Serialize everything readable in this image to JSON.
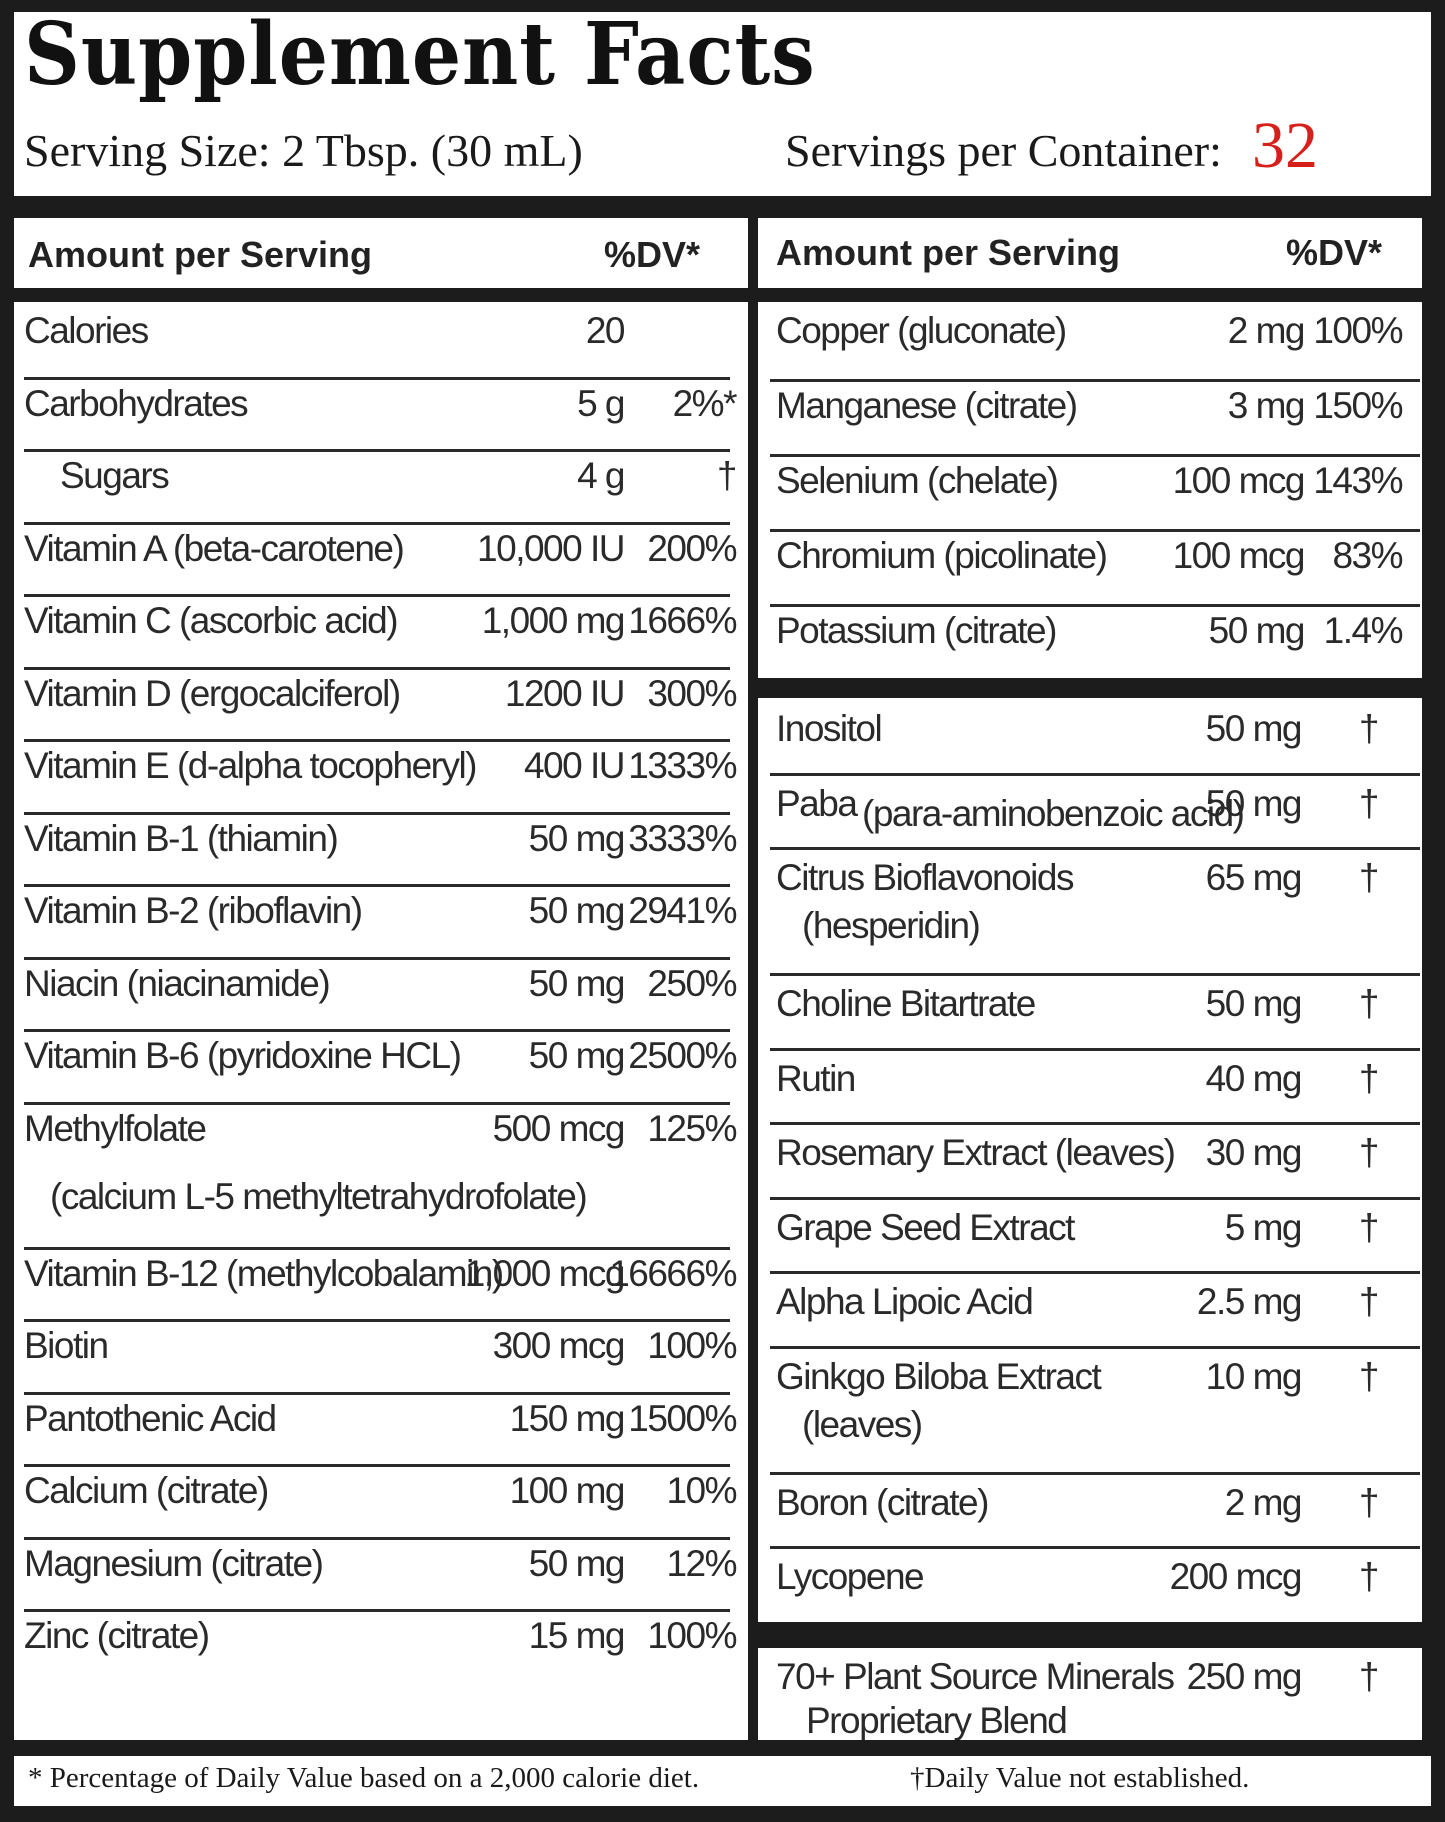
{
  "title": "Supplement Facts",
  "serving_size": "Serving Size: 2 Tbsp. (30 mL)",
  "servings_per_container_label": "Servings per Container:",
  "servings_per_container_value": "32",
  "accent_color": "#d6201c",
  "left_header": {
    "amount": "Amount per Serving",
    "dv": "%DV*"
  },
  "right_header": {
    "amount": "Amount per Serving",
    "dv": "%DV*"
  },
  "left_rows": [
    {
      "name": "Calories",
      "amount": "20",
      "dv": ""
    },
    {
      "name": "Carbohydrates",
      "amount": "5 g",
      "dv": "2%*"
    },
    {
      "name": "Sugars",
      "amount": "4 g",
      "dv": "†"
    },
    {
      "name": "Vitamin A (beta-carotene)",
      "amount": "10,000 IU",
      "dv": "200%"
    },
    {
      "name": "Vitamin C (ascorbic acid)",
      "amount": "1,000 mg",
      "dv": "1666%"
    },
    {
      "name": "Vitamin D (ergocalciferol)",
      "amount": "1200 IU",
      "dv": "300%"
    },
    {
      "name": "Vitamin E (d-alpha tocopheryl)",
      "amount": "400 IU",
      "dv": "1333%"
    },
    {
      "name": "Vitamin B-1 (thiamin)",
      "amount": "50 mg",
      "dv": "3333%"
    },
    {
      "name": "Vitamin B-2 (riboflavin)",
      "amount": "50 mg",
      "dv": "2941%"
    },
    {
      "name": "Niacin (niacinamide)",
      "amount": "50 mg",
      "dv": "250%"
    },
    {
      "name": "Vitamin B-6 (pyridoxine HCL)",
      "amount": "50 mg",
      "dv": "2500%"
    },
    {
      "name": "Methylfolate",
      "sub": "(calcium L-5 methyltetrahydrofolate)",
      "amount": "500 mcg",
      "dv": "125%"
    },
    {
      "name": "Vitamin B-12 (methylcobalamin)",
      "amount": "1,000 mcg",
      "dv": "16666%"
    },
    {
      "name": "Biotin",
      "amount": "300 mcg",
      "dv": "100%"
    },
    {
      "name": "Pantothenic Acid",
      "amount": "150 mg",
      "dv": "1500%"
    },
    {
      "name": "Calcium (citrate)",
      "amount": "100 mg",
      "dv": "10%"
    },
    {
      "name": "Magnesium (citrate)",
      "amount": "50 mg",
      "dv": "12%"
    },
    {
      "name": "Zinc (citrate)",
      "amount": "15 mg",
      "dv": "100%"
    }
  ],
  "right_rows_minerals": [
    {
      "name": "Copper (gluconate)",
      "amount": "2 mg",
      "dv": "100%"
    },
    {
      "name": "Manganese (citrate)",
      "amount": "3 mg",
      "dv": "150%"
    },
    {
      "name": "Selenium (chelate)",
      "amount": "100 mcg",
      "dv": "143%"
    },
    {
      "name": "Chromium  (picolinate)",
      "amount": "100 mcg",
      "dv": "83%"
    },
    {
      "name": "Potassium (citrate)",
      "amount": "50 mg",
      "dv": "1.4%"
    }
  ],
  "right_rows_other": [
    {
      "name": "Inositol",
      "amount": "50 mg",
      "dv": "†"
    },
    {
      "name": "Paba",
      "name_small": "(para-aminobenzoic acid)",
      "amount": "50 mg",
      "dv": "†"
    },
    {
      "name": "Citrus Bioflavonoids",
      "sub": "(hesperidin)",
      "amount": "65 mg",
      "dv": "†"
    },
    {
      "name": "Choline Bitartrate",
      "amount": "50 mg",
      "dv": "†"
    },
    {
      "name": "Rutin",
      "amount": "40 mg",
      "dv": "†"
    },
    {
      "name": "Rosemary Extract (leaves)",
      "amount": "30 mg",
      "dv": "†"
    },
    {
      "name": "Grape Seed Extract",
      "amount": "5 mg",
      "dv": "†"
    },
    {
      "name": "Alpha Lipoic Acid",
      "amount": "2.5 mg",
      "dv": "†"
    },
    {
      "name": "Ginkgo Biloba Extract",
      "sub": "(leaves)",
      "amount": "10 mg",
      "dv": "†"
    },
    {
      "name": "Boron (citrate)",
      "amount": "2 mg",
      "dv": "†"
    },
    {
      "name": "Lycopene",
      "amount": "200 mcg",
      "dv": "†"
    }
  ],
  "right_rows_blend": [
    {
      "name": "70+ Plant Source Minerals",
      "sub": "Proprietary Blend",
      "amount": "250 mg",
      "dv": "†"
    }
  ],
  "footnote_left": "* Percentage of Daily Value based on a 2,000 calorie diet.",
  "footnote_right": "†Daily Value not established."
}
